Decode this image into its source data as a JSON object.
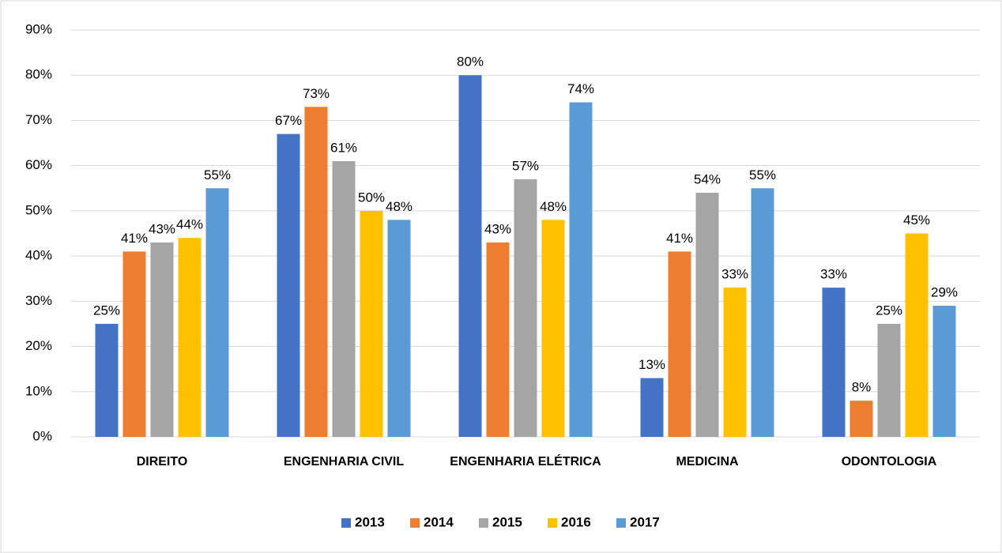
{
  "chart_data": {
    "type": "bar",
    "categories": [
      "DIREITO",
      "ENGENHARIA CIVIL",
      "ENGENHARIA ELÉTRICA",
      "MEDICINA",
      "ODONTOLOGIA"
    ],
    "series": [
      {
        "name": "2013",
        "color": "#4472c4",
        "values": [
          25,
          67,
          80,
          13,
          33
        ],
        "value_labels": [
          "25%",
          "67%",
          "80%",
          "13%",
          "33%"
        ]
      },
      {
        "name": "2014",
        "color": "#ed7d31",
        "values": [
          41,
          73,
          43,
          41,
          8
        ],
        "value_labels": [
          "41%",
          "73%",
          "43%",
          "41%",
          "8%"
        ]
      },
      {
        "name": "2015",
        "color": "#a5a5a5",
        "values": [
          43,
          61,
          57,
          54,
          25
        ],
        "value_labels": [
          "43%",
          "61%",
          "57%",
          "54%",
          "25%"
        ]
      },
      {
        "name": "2016",
        "color": "#ffc000",
        "values": [
          44,
          50,
          48,
          33,
          45
        ],
        "value_labels": [
          "44%",
          "50%",
          "48%",
          "33%",
          "45%"
        ]
      },
      {
        "name": "2017",
        "color": "#5b9bd5",
        "values": [
          55,
          48,
          74,
          55,
          29
        ],
        "value_labels": [
          "55%",
          "48%",
          "74%",
          "55%",
          "29%"
        ]
      }
    ],
    "ylim": [
      0,
      90
    ],
    "yticks": [
      {
        "value": 0,
        "label": "0%"
      },
      {
        "value": 10,
        "label": "10%"
      },
      {
        "value": 20,
        "label": "20%"
      },
      {
        "value": 30,
        "label": "30%"
      },
      {
        "value": 40,
        "label": "40%"
      },
      {
        "value": 50,
        "label": "50%"
      },
      {
        "value": 60,
        "label": "60%"
      },
      {
        "value": 70,
        "label": "70%"
      },
      {
        "value": 80,
        "label": "80%"
      },
      {
        "value": 90,
        "label": "90%"
      }
    ],
    "grid": true,
    "legend": "bottom"
  }
}
